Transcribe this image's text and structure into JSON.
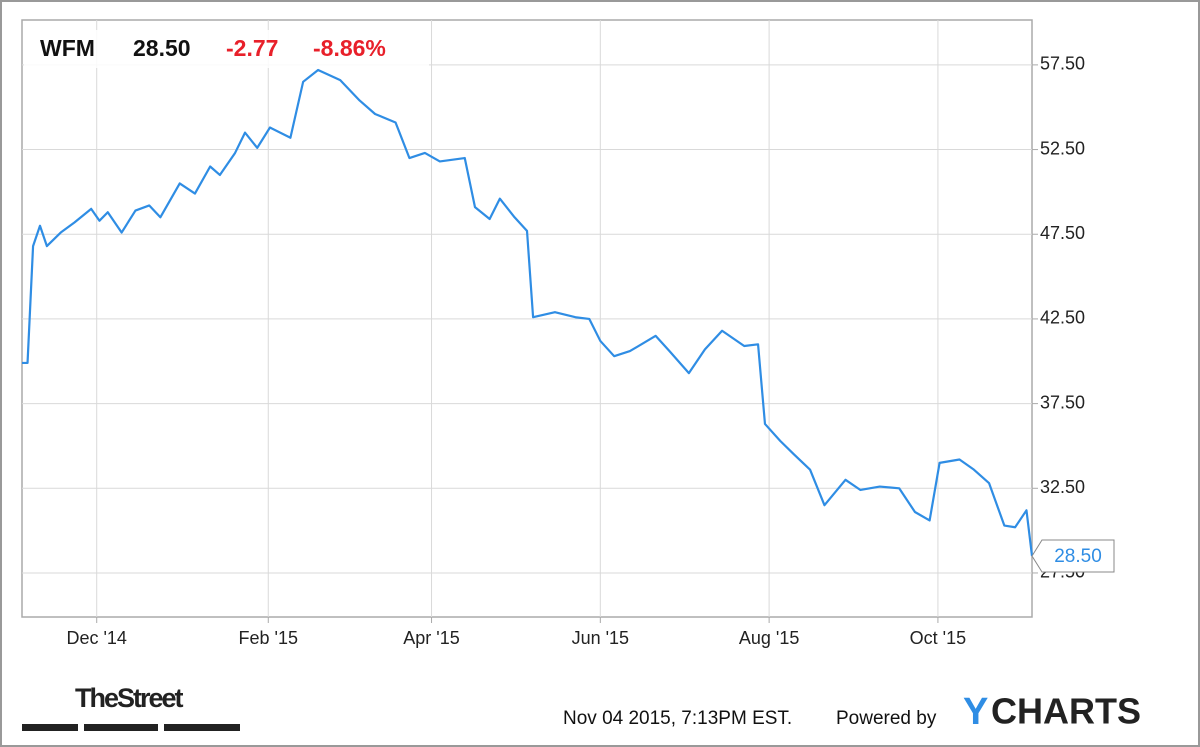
{
  "chart_data": {
    "type": "line",
    "symbol": "WFM",
    "price": "28.50",
    "change": "-2.77",
    "change_pct": "-8.86%",
    "x": [
      0,
      2,
      4,
      6.5,
      9,
      14,
      19,
      25,
      28,
      31,
      36,
      41,
      46,
      50,
      57,
      62.5,
      68,
      71.5,
      77,
      80.6,
      85,
      89.6,
      97,
      101.6,
      107,
      115,
      122,
      127.6,
      135,
      140,
      145.6,
      151,
      160,
      163.7,
      169,
      172.7,
      178,
      182.5,
      184.7,
      192.6,
      200,
      205,
      209,
      214,
      219.7,
      229,
      234,
      241,
      246.8,
      253,
      261,
      266,
      268.5,
      274,
      279,
      284.8,
      290,
      297.6,
      303,
      310,
      317,
      322.7,
      328,
      331.6,
      338.8,
      344,
      349.5,
      355,
      358.9,
      363,
      365
    ],
    "series": [
      {
        "name": "WFM",
        "color": "#2f8de4",
        "values": [
          39.9,
          39.9,
          46.8,
          48.0,
          46.8,
          47.6,
          48.2,
          49.0,
          48.3,
          48.8,
          47.6,
          48.9,
          49.2,
          48.5,
          50.5,
          49.9,
          51.5,
          51.0,
          52.3,
          53.5,
          52.6,
          53.8,
          53.2,
          56.5,
          57.2,
          56.6,
          55.4,
          54.6,
          54.1,
          52.0,
          52.3,
          51.8,
          52.0,
          49.1,
          48.4,
          49.6,
          48.5,
          47.7,
          42.6,
          42.9,
          42.6,
          42.5,
          41.2,
          40.3,
          40.6,
          41.5,
          40.6,
          39.3,
          40.7,
          41.8,
          40.9,
          41.0,
          36.3,
          35.3,
          34.5,
          33.6,
          31.5,
          33.0,
          32.4,
          32.6,
          32.5,
          31.1,
          30.6,
          34.0,
          34.2,
          33.6,
          32.8,
          30.3,
          30.2,
          31.2,
          28.5
        ]
      }
    ],
    "xlim": [
      0,
      365
    ],
    "xticks": [
      {
        "value": 27,
        "label": "Dec '14"
      },
      {
        "value": 89,
        "label": "Feb '15"
      },
      {
        "value": 148,
        "label": "Apr '15"
      },
      {
        "value": 209,
        "label": "Jun '15"
      },
      {
        "value": 270,
        "label": "Aug '15"
      },
      {
        "value": 331,
        "label": "Oct '15"
      }
    ],
    "ylim": [
      24.9,
      60.15
    ],
    "yticks": [
      {
        "value": 27.5,
        "label": "27.50"
      },
      {
        "value": 32.5,
        "label": "32.50"
      },
      {
        "value": 37.5,
        "label": "37.50"
      },
      {
        "value": 42.5,
        "label": "42.50"
      },
      {
        "value": 47.5,
        "label": "47.50"
      },
      {
        "value": 52.5,
        "label": "52.50"
      },
      {
        "value": 57.5,
        "label": "57.50"
      }
    ],
    "grid": true
  },
  "footer": {
    "source_logo": "TheStreet",
    "timestamp": "Nov 04 2015, 7:13PM EST.",
    "powered_by": "Powered by",
    "brand_y": "Y",
    "brand_rest": "CHARTS"
  }
}
